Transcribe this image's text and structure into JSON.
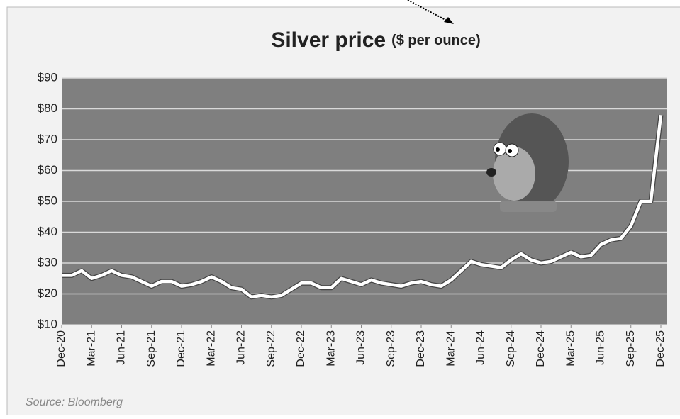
{
  "chart_data": {
    "type": "line",
    "title": "Silver price",
    "title_unit": "($ per ounce)",
    "source": "Source: Bloomberg",
    "x": [
      "Dec-20",
      "Jan-21",
      "Feb-21",
      "Mar-21",
      "Apr-21",
      "May-21",
      "Jun-21",
      "Jul-21",
      "Aug-21",
      "Sep-21",
      "Oct-21",
      "Nov-21",
      "Dec-21",
      "Jan-22",
      "Feb-22",
      "Mar-22",
      "Apr-22",
      "May-22",
      "Jun-22",
      "Jul-22",
      "Aug-22",
      "Sep-22",
      "Oct-22",
      "Nov-22",
      "Dec-22",
      "Jan-23",
      "Feb-23",
      "Mar-23",
      "Apr-23",
      "May-23",
      "Jun-23",
      "Jul-23",
      "Aug-23",
      "Sep-23",
      "Oct-23",
      "Nov-23",
      "Dec-23",
      "Jan-24",
      "Feb-24",
      "Mar-24",
      "Apr-24",
      "May-24",
      "Jun-24",
      "Jul-24",
      "Aug-24",
      "Sep-24",
      "Oct-24",
      "Nov-24",
      "Dec-24",
      "Jan-25",
      "Feb-25",
      "Mar-25",
      "Apr-25",
      "May-25",
      "Jun-25",
      "Jul-25",
      "Aug-25",
      "Sep-25",
      "Oct-25",
      "Nov-25",
      "Dec-25"
    ],
    "xticks": [
      "Dec-20",
      "Mar-21",
      "Jun-21",
      "Sep-21",
      "Dec-21",
      "Mar-22",
      "Jun-22",
      "Sep-22",
      "Dec-22",
      "Mar-23",
      "Jun-23",
      "Sep-23",
      "Dec-23",
      "Mar-24",
      "Jun-24",
      "Sep-24",
      "Dec-24",
      "Mar-25",
      "Jun-25",
      "Sep-25",
      "Dec-25"
    ],
    "series": [
      {
        "name": "Silver",
        "color": "#ffffff",
        "values": [
          26,
          26,
          27.5,
          25,
          26,
          27.5,
          26,
          25.5,
          24,
          22.5,
          24,
          24,
          22.5,
          23,
          24,
          25.5,
          24,
          22,
          21.5,
          19,
          19.5,
          19,
          19.5,
          21.5,
          23.5,
          23.5,
          22,
          22,
          25,
          24,
          23,
          24.5,
          23.5,
          23,
          22.5,
          23.5,
          24,
          23,
          22.5,
          24.5,
          27.5,
          30.5,
          29.5,
          29,
          28.5,
          31,
          33,
          31,
          30,
          30.5,
          32,
          33.5,
          32,
          32.5,
          36,
          37.5,
          38,
          42,
          50,
          50,
          78
        ]
      }
    ],
    "ylim": [
      10,
      90
    ],
    "yticks": [
      {
        "value": 10,
        "label": "$10"
      },
      {
        "value": 20,
        "label": "$20"
      },
      {
        "value": 30,
        "label": "$30"
      },
      {
        "value": 40,
        "label": "$40"
      },
      {
        "value": 50,
        "label": "$50"
      },
      {
        "value": 60,
        "label": "$60"
      },
      {
        "value": 70,
        "label": "$70"
      },
      {
        "value": 80,
        "label": "$80"
      },
      {
        "value": 90,
        "label": "$90"
      }
    ],
    "grid": true
  }
}
